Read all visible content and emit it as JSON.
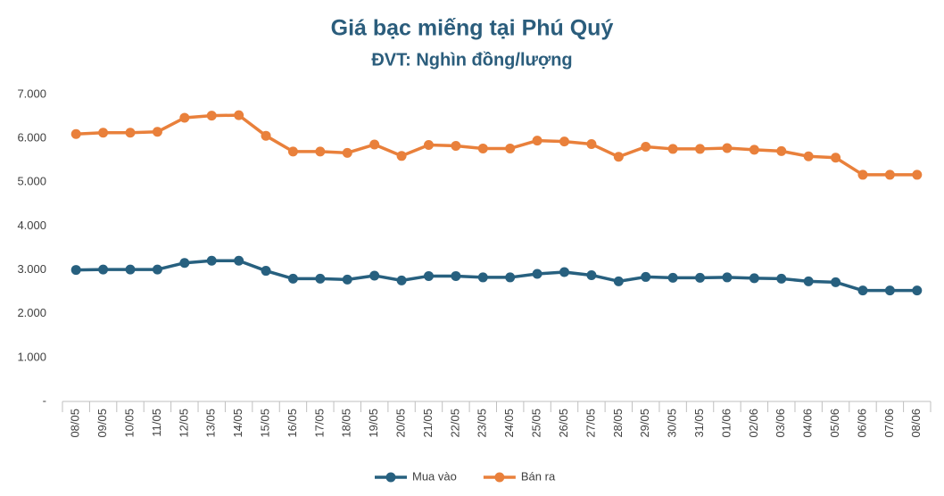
{
  "chart_data": {
    "type": "line",
    "title": "Giá bạc miếng tại Phú Quý",
    "subtitle": "ĐVT: Nghìn đồng/lượng",
    "categories": [
      "08/05",
      "09/05",
      "10/05",
      "11/05",
      "12/05",
      "13/05",
      "14/05",
      "15/05",
      "16/05",
      "17/05",
      "18/05",
      "19/05",
      "20/05",
      "21/05",
      "22/05",
      "23/05",
      "24/05",
      "25/05",
      "26/05",
      "27/05",
      "28/05",
      "29/05",
      "30/05",
      "31/05",
      "01/06",
      "02/06",
      "03/06",
      "04/06",
      "05/06",
      "06/06",
      "07/06",
      "08/06"
    ],
    "series": [
      {
        "name": "Mua vào",
        "color": "#27607f",
        "values": [
          3000,
          3010,
          3010,
          3010,
          3160,
          3210,
          3210,
          2980,
          2800,
          2800,
          2780,
          2870,
          2760,
          2860,
          2860,
          2830,
          2830,
          2910,
          2950,
          2880,
          2740,
          2840,
          2820,
          2820,
          2830,
          2810,
          2800,
          2740,
          2720,
          2530,
          2530,
          2530
        ]
      },
      {
        "name": "Bán ra",
        "color": "#e9803b",
        "values": [
          6100,
          6130,
          6130,
          6150,
          6470,
          6520,
          6530,
          6060,
          5700,
          5700,
          5670,
          5860,
          5600,
          5850,
          5830,
          5770,
          5770,
          5950,
          5930,
          5870,
          5580,
          5810,
          5760,
          5760,
          5780,
          5740,
          5710,
          5590,
          5560,
          5170,
          5170,
          5170
        ]
      }
    ],
    "ylim": [
      0,
      7000
    ],
    "yticks": [
      {
        "value": 0,
        "label": "-"
      },
      {
        "value": 1000,
        "label": "1.000"
      },
      {
        "value": 2000,
        "label": "2.000"
      },
      {
        "value": 3000,
        "label": "3.000"
      },
      {
        "value": 4000,
        "label": "4.000"
      },
      {
        "value": 5000,
        "label": "5.000"
      },
      {
        "value": 6000,
        "label": "6.000"
      },
      {
        "value": 7000,
        "label": "7.000"
      }
    ],
    "grid": false,
    "legend": "bottom"
  }
}
